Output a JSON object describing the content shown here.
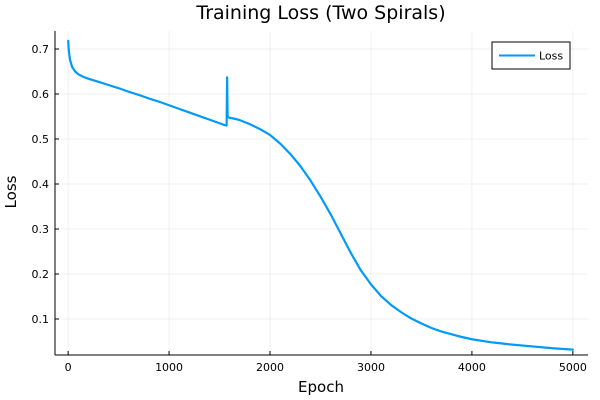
{
  "chart_data": {
    "type": "line",
    "title": "Training Loss (Two Spirals)",
    "xlabel": "Epoch",
    "ylabel": "Loss",
    "xlim": [
      -130,
      5150
    ],
    "ylim": [
      0.02,
      0.74
    ],
    "x_ticks": [
      0,
      1000,
      2000,
      3000,
      4000,
      5000
    ],
    "x_tick_labels": [
      "0",
      "1000",
      "2000",
      "3000",
      "4000",
      "5000"
    ],
    "y_ticks": [
      0.1,
      0.2,
      0.3,
      0.4,
      0.5,
      0.6,
      0.7
    ],
    "y_tick_labels": [
      "0.1",
      "0.2",
      "0.3",
      "0.4",
      "0.5",
      "0.6",
      "0.7"
    ],
    "grid": true,
    "legend_position": "top-right",
    "series": [
      {
        "name": "Loss",
        "color": "#009AFA",
        "x": [
          1,
          5,
          10,
          20,
          40,
          70,
          100,
          150,
          200,
          300,
          400,
          500,
          600,
          700,
          800,
          900,
          1000,
          1100,
          1200,
          1300,
          1400,
          1500,
          1550,
          1570,
          1575,
          1580,
          1590,
          1600,
          1650,
          1700,
          1800,
          1900,
          2000,
          2100,
          2200,
          2300,
          2400,
          2500,
          2600,
          2700,
          2800,
          2900,
          3000,
          3100,
          3200,
          3300,
          3400,
          3500,
          3600,
          3700,
          3800,
          3900,
          4000,
          4200,
          4400,
          4600,
          4800,
          5000
        ],
        "y": [
          0.718,
          0.7,
          0.69,
          0.675,
          0.66,
          0.65,
          0.644,
          0.638,
          0.634,
          0.627,
          0.62,
          0.613,
          0.605,
          0.598,
          0.59,
          0.583,
          0.575,
          0.567,
          0.559,
          0.551,
          0.543,
          0.535,
          0.531,
          0.53,
          0.637,
          0.55,
          0.548,
          0.547,
          0.545,
          0.542,
          0.533,
          0.522,
          0.509,
          0.49,
          0.467,
          0.44,
          0.408,
          0.372,
          0.333,
          0.29,
          0.247,
          0.208,
          0.177,
          0.151,
          0.131,
          0.115,
          0.101,
          0.09,
          0.08,
          0.072,
          0.066,
          0.06,
          0.055,
          0.048,
          0.043,
          0.039,
          0.035,
          0.032
        ]
      }
    ]
  }
}
